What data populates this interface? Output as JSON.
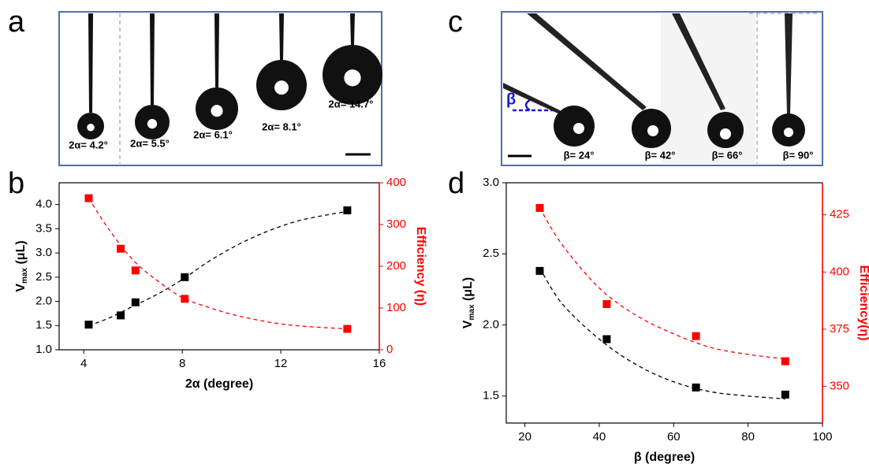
{
  "panel_labels": [
    "a",
    "b",
    "c",
    "d"
  ],
  "photos": [
    {
      "labels": [
        "2α= 4.2°",
        "2α= 5.5°",
        "2α= 6.1°",
        "2α= 8.1°",
        "2α= 14.7°"
      ]
    },
    {
      "labels": [
        "β= 24°",
        "β= 42°",
        "β= 66°",
        "β= 90°"
      ],
      "annotation": "β"
    }
  ],
  "chart_data": [
    {
      "type": "scatter",
      "xlabel": "2α (degree)",
      "ylabel": {
        "main": "V",
        "sub": "max",
        "unit": " (μL)"
      },
      "y2label": "Efficiency (η)",
      "xlim": [
        3,
        16
      ],
      "xticks": [
        4,
        8,
        12,
        16
      ],
      "ylim": [
        1,
        4.45
      ],
      "yticks": [
        {
          "value": 1,
          "label": "1.0"
        },
        1.5,
        {
          "value": 2,
          "label": "2.0"
        },
        2.5,
        {
          "value": 3,
          "label": "3.0"
        },
        3.5,
        {
          "value": 4,
          "label": "4.0"
        }
      ],
      "y2lim": [
        0,
        400
      ],
      "y2ticks": [
        0,
        100,
        200,
        300,
        400
      ],
      "series": [
        {
          "color": "#000000",
          "marker": "square",
          "x": [
            4.2,
            5.5,
            6.1,
            8.1,
            14.7
          ],
          "values": [
            1.52,
            1.71,
            1.98,
            2.5,
            3.88
          ]
        },
        {
          "color": "#ff0000",
          "marker": "square",
          "axis": "y2",
          "x": [
            4.2,
            5.5,
            6.1,
            8.1,
            14.7
          ],
          "values": [
            363,
            242,
            190,
            122,
            50
          ]
        },
        {
          "color": "#000000",
          "style": "dashed",
          "x": [
            4.2,
            5,
            6,
            7,
            8,
            9,
            10,
            11,
            12,
            13,
            14.7
          ],
          "values": [
            1.5,
            1.65,
            1.9,
            2.15,
            2.45,
            2.8,
            3.1,
            3.35,
            3.55,
            3.7,
            3.86
          ]
        },
        {
          "color": "#ff0000",
          "style": "dashed",
          "axis": "y2",
          "x": [
            4.2,
            5,
            6,
            7,
            8,
            9,
            10,
            11,
            12,
            13,
            14.7
          ],
          "values": [
            363,
            290,
            215,
            165,
            125,
            103,
            85,
            72,
            62,
            56,
            50
          ]
        }
      ]
    },
    {
      "type": "scatter",
      "xlabel": "β (degree)",
      "ylabel": {
        "main": "V",
        "sub": "max",
        "unit": " (μL)"
      },
      "y2label": "Efficiency(η)",
      "xlim": [
        15,
        100
      ],
      "xticks": [
        20,
        40,
        60,
        80,
        100
      ],
      "ylim": [
        1.31,
        3
      ],
      "yticks": [
        1.5,
        {
          "value": 2,
          "label": "2.0"
        },
        2.5,
        {
          "value": 3,
          "label": "3.0"
        }
      ],
      "y2lim": [
        334,
        439
      ],
      "y2ticks": [
        350,
        375,
        400,
        425
      ],
      "series": [
        {
          "color": "#000000",
          "marker": "square",
          "x": [
            24,
            42,
            66,
            90
          ],
          "values": [
            2.38,
            1.9,
            1.56,
            1.51
          ]
        },
        {
          "color": "#ff0000",
          "marker": "square",
          "axis": "y2",
          "x": [
            24,
            42,
            66,
            90
          ],
          "values": [
            428,
            386,
            372,
            361
          ]
        },
        {
          "color": "#000000",
          "style": "dashed",
          "x": [
            24,
            30,
            40,
            50,
            60,
            70,
            80,
            90
          ],
          "values": [
            2.4,
            2.15,
            1.9,
            1.72,
            1.6,
            1.53,
            1.5,
            1.48
          ]
        },
        {
          "color": "#ff0000",
          "style": "dashed",
          "axis": "y2",
          "x": [
            24,
            30,
            40,
            50,
            60,
            70,
            80,
            90
          ],
          "values": [
            428,
            412,
            393,
            381,
            373,
            367,
            364,
            362
          ]
        }
      ]
    }
  ]
}
